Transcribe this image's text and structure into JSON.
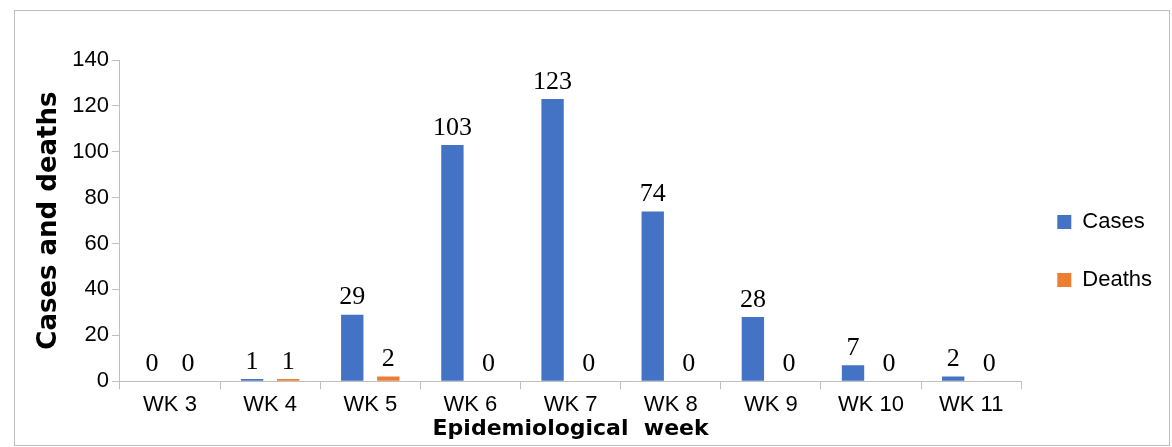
{
  "chart_data": {
    "type": "bar",
    "xlabel": "Epidemiological  week",
    "ylabel": "Cases and deaths",
    "categories": [
      "WK 3",
      "WK 4",
      "WK 5",
      "WK 6",
      "WK 7",
      "WK 8",
      "WK 9",
      "WK 10",
      "WK 11"
    ],
    "series": [
      {
        "name": "Cases",
        "color": "#4472c4",
        "values": [
          0,
          1,
          29,
          103,
          123,
          74,
          28,
          7,
          2
        ]
      },
      {
        "name": "Deaths",
        "color": "#ed7d31",
        "values": [
          0,
          1,
          2,
          0,
          0,
          0,
          0,
          0,
          0
        ]
      }
    ],
    "ylim": [
      0,
      140
    ],
    "yticks": [
      0,
      20,
      40,
      60,
      80,
      100,
      120,
      140
    ],
    "grid": false,
    "legend": "right",
    "data_labels": true
  }
}
